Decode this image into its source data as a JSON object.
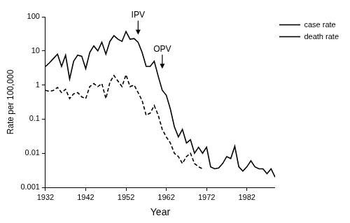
{
  "chart_data": {
    "type": "line",
    "x_label": "Year",
    "y_label": "Rate per 100,000",
    "x": [
      1932,
      1933,
      1934,
      1935,
      1936,
      1937,
      1938,
      1939,
      1940,
      1941,
      1942,
      1943,
      1944,
      1945,
      1946,
      1947,
      1948,
      1949,
      1950,
      1951,
      1952,
      1953,
      1954,
      1955,
      1956,
      1957,
      1958,
      1959,
      1960,
      1961,
      1962,
      1963,
      1964,
      1965,
      1966,
      1967,
      1968,
      1969,
      1970,
      1971,
      1972,
      1973,
      1974,
      1975,
      1976,
      1977,
      1978,
      1979,
      1980,
      1981,
      1982,
      1983,
      1984,
      1985,
      1986,
      1987,
      1988,
      1989
    ],
    "series": [
      {
        "name": "case rate",
        "color": "#000000",
        "line_style": "solid",
        "marker": "none",
        "values": [
          3.5,
          4.5,
          6,
          8,
          3.5,
          7.5,
          1.5,
          5,
          7.5,
          7,
          3,
          9,
          14,
          10,
          18,
          8,
          19,
          28,
          22,
          19,
          37,
          22,
          23,
          18,
          9,
          3.5,
          3.5,
          5,
          1.8,
          0.7,
          0.5,
          0.2,
          0.06,
          0.03,
          0.05,
          0.02,
          0.025,
          0.01,
          0.015,
          0.01,
          0.015,
          0.004,
          0.0035,
          0.0037,
          0.005,
          0.008,
          0.007,
          0.016,
          0.004,
          0.003,
          0.004,
          0.006,
          0.004,
          0.0035,
          0.0035,
          0.0025,
          0.0035,
          0.002
        ]
      },
      {
        "name": "death rate",
        "color": "#000000",
        "line_style": "dashed",
        "marker": "none",
        "values": [
          0.7,
          0.65,
          0.7,
          0.85,
          0.6,
          0.75,
          0.4,
          0.55,
          0.6,
          0.45,
          0.4,
          0.9,
          1.1,
          0.9,
          1.1,
          0.4,
          1.2,
          1.9,
          1.3,
          0.9,
          2,
          0.9,
          1,
          0.6,
          0.35,
          0.13,
          0.15,
          0.25,
          0.13,
          0.05,
          0.03,
          0.02,
          0.01,
          0.008,
          0.005,
          0.008,
          0.01,
          0.005,
          0.004,
          0.0035,
          null,
          null,
          null,
          null,
          null,
          null,
          null,
          null,
          null,
          null,
          null,
          null,
          null,
          null,
          null,
          null,
          null,
          null
        ]
      }
    ],
    "xlim": [
      1932,
      1989
    ],
    "xticks": [
      1932,
      1942,
      1952,
      1962,
      1972,
      1982
    ],
    "ylim": [
      0.001,
      100
    ],
    "yticks": [
      0.001,
      0.01,
      0.1,
      1,
      10,
      100
    ],
    "log": "y",
    "grid": false,
    "legend": "top-right",
    "annotations": [
      {
        "text": "IPV",
        "x": 1955,
        "y": 30
      },
      {
        "text": "OPV",
        "x": 1961,
        "y": 3
      }
    ]
  }
}
